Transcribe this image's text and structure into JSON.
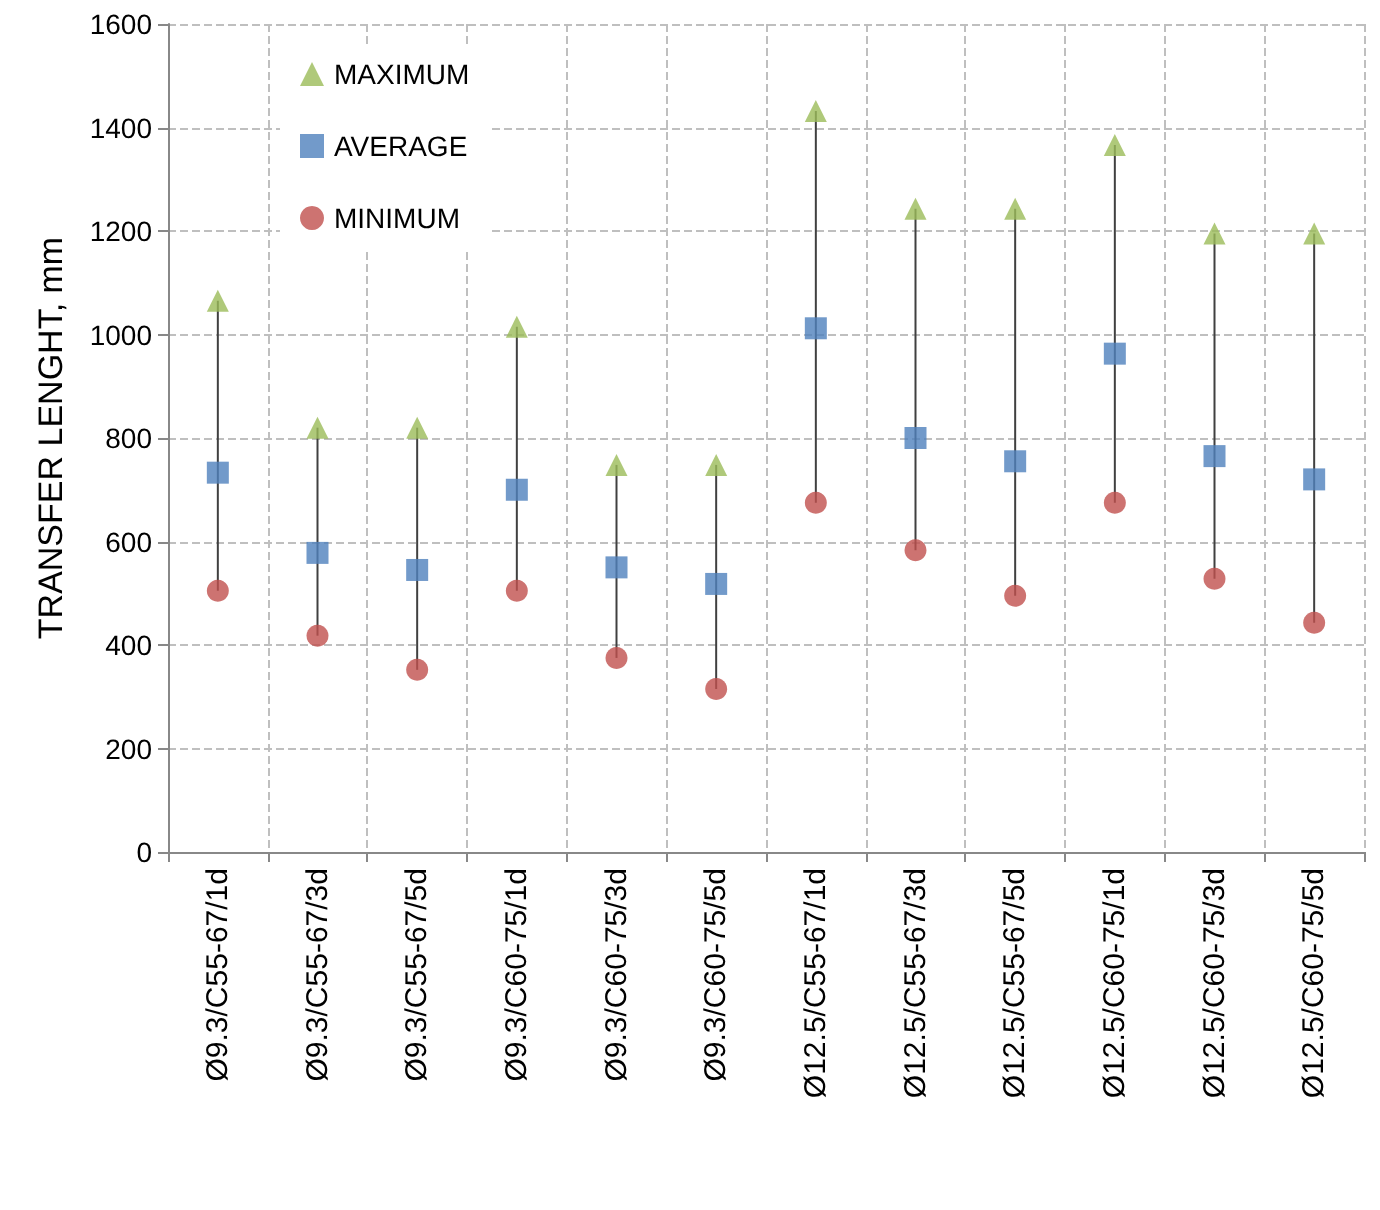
{
  "chart_data": {
    "type": "scatter",
    "ylabel": "TRANSFER LENGHT, mm",
    "categories": [
      "Ø9.3/C55-67/1d",
      "Ø9.3/C55-67/3d",
      "Ø9.3/C55-67/5d",
      "Ø9.3/C60-75/1d",
      "Ø9.3/C60-75/3d",
      "Ø9.3/C60-75/5d",
      "Ø12.5/C55-67/1d",
      "Ø12.5/C55-67/3d",
      "Ø12.5/C55-67/5d",
      "Ø12.5/C60-75/1d",
      "Ø12.5/C60-75/3d",
      "Ø12.5/C60-75/5d"
    ],
    "series": [
      {
        "name": "MAXIMUM",
        "color": "#9bbb59",
        "marker": "triangle",
        "values": [
          1065,
          820,
          820,
          1015,
          748,
          748,
          1432,
          1243,
          1243,
          1366,
          1195,
          1195
        ]
      },
      {
        "name": "AVERAGE",
        "color": "#4f81bd",
        "marker": "square",
        "values": [
          733,
          578,
          545,
          700,
          550,
          518,
          1012,
          800,
          755,
          963,
          765,
          720
        ]
      },
      {
        "name": "MINIMUM",
        "color": "#c0504d",
        "marker": "circle",
        "values": [
          505,
          418,
          352,
          505,
          375,
          315,
          675,
          583,
          495,
          675,
          528,
          443
        ]
      }
    ],
    "ylim": [
      0,
      1600
    ],
    "yticks": [
      0,
      200,
      400,
      600,
      800,
      1000,
      1200,
      1400,
      1600
    ],
    "grid": true,
    "legend": "top left"
  }
}
